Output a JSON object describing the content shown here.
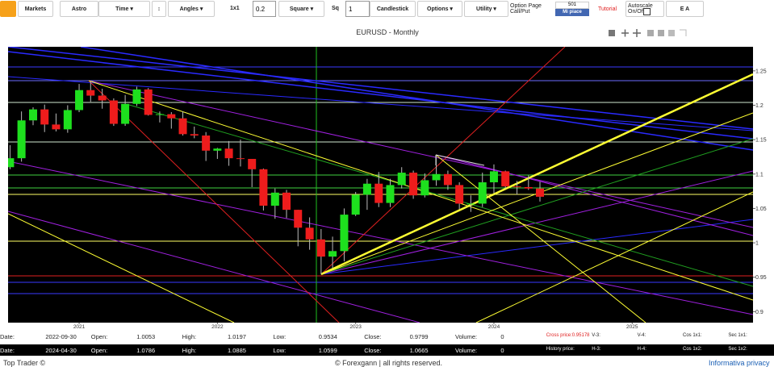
{
  "toolbar": {
    "markets": "Markets",
    "astro": "Astro",
    "time": "Time ▾",
    "updown": "↕",
    "angles": "Angles ▾",
    "ratio_label": "1x1",
    "ratio_value": "0.2",
    "square": "Square ▾",
    "sq_label": "Sq",
    "sq_value": "1",
    "candlestick": "Candlestick",
    "options": "Options ▾",
    "utility": "Utility ▾",
    "option_page": "Option Page",
    "call_put": "Call/Put",
    "like_count": "501",
    "like": "Mi piace",
    "tutorial": "Tutorial",
    "autoscale": "Autoscale",
    "on_off": "On/Off",
    "ea": "E A"
  },
  "chart_data": {
    "type": "candlestick",
    "title": "EURUSD - Monthly",
    "x": [
      2020.5,
      2020.583,
      2020.667,
      2020.75,
      2020.833,
      2020.917,
      2021.0,
      2021.083,
      2021.167,
      2021.25,
      2021.333,
      2021.417,
      2021.5,
      2021.583,
      2021.667,
      2021.75,
      2021.833,
      2021.917,
      2022.0,
      2022.083,
      2022.167,
      2022.25,
      2022.333,
      2022.417,
      2022.5,
      2022.583,
      2022.667,
      2022.75,
      2022.833,
      2022.917,
      2023.0,
      2023.083,
      2023.167,
      2023.25,
      2023.333,
      2023.417,
      2023.5,
      2023.583,
      2023.667,
      2023.75,
      2023.833,
      2023.917,
      2024.0,
      2024.083,
      2024.167,
      2024.25,
      2024.333
    ],
    "open": [
      1.11,
      1.123,
      1.178,
      1.194,
      1.172,
      1.165,
      1.193,
      1.222,
      1.214,
      1.207,
      1.173,
      1.202,
      1.223,
      1.186,
      1.187,
      1.181,
      1.158,
      1.156,
      1.134,
      1.137,
      1.123,
      1.122,
      1.107,
      1.054,
      1.073,
      1.048,
      1.022,
      1.005,
      0.98,
      0.988,
      1.041,
      1.07,
      1.086,
      1.058,
      1.084,
      1.102,
      1.069,
      1.091,
      1.1,
      1.084,
      1.057,
      1.057,
      1.088,
      1.104,
      1.082,
      1.081,
      1.079
    ],
    "high": [
      1.142,
      1.191,
      1.197,
      1.201,
      1.188,
      1.2,
      1.231,
      1.235,
      1.224,
      1.21,
      1.215,
      1.227,
      1.225,
      1.191,
      1.19,
      1.191,
      1.169,
      1.161,
      1.138,
      1.148,
      1.15,
      1.118,
      1.108,
      1.079,
      1.077,
      1.048,
      1.037,
      1.02,
      1.009,
      1.05,
      1.074,
      1.093,
      1.103,
      1.093,
      1.11,
      1.105,
      1.101,
      1.128,
      1.105,
      1.088,
      1.069,
      1.102,
      1.114,
      1.105,
      1.09,
      1.098,
      1.089
    ],
    "low": [
      1.107,
      1.118,
      1.171,
      1.161,
      1.162,
      1.16,
      1.19,
      1.205,
      1.195,
      1.17,
      1.17,
      1.199,
      1.185,
      1.175,
      1.166,
      1.156,
      1.152,
      1.119,
      1.122,
      1.112,
      1.111,
      1.081,
      1.047,
      1.035,
      1.036,
      0.995,
      0.99,
      0.954,
      0.963,
      0.973,
      1.039,
      1.048,
      1.052,
      1.052,
      1.079,
      1.064,
      1.066,
      1.083,
      1.077,
      1.049,
      1.045,
      1.052,
      1.072,
      1.079,
      1.07,
      1.077,
      1.06
    ],
    "close": [
      1.123,
      1.178,
      1.194,
      1.172,
      1.165,
      1.193,
      1.222,
      1.214,
      1.207,
      1.173,
      1.202,
      1.223,
      1.186,
      1.187,
      1.181,
      1.158,
      1.156,
      1.134,
      1.137,
      1.123,
      1.122,
      1.107,
      1.054,
      1.073,
      1.048,
      1.022,
      1.005,
      0.98,
      0.988,
      1.041,
      1.07,
      1.086,
      1.058,
      1.084,
      1.102,
      1.069,
      1.091,
      1.1,
      1.084,
      1.057,
      1.057,
      1.088,
      1.104,
      1.082,
      1.081,
      1.079,
      1.067
    ],
    "xlim": [
      2020.486,
      2025.874
    ],
    "xticks": [
      2021,
      2022,
      2023,
      2024,
      2025
    ],
    "ylim": [
      0.884,
      1.285
    ],
    "yticks": [
      0.9,
      0.95,
      1,
      1.05,
      1.1,
      1.15,
      1.2,
      1.25
    ],
    "up_color": "#1ee01e",
    "down_color": "#ee1c1c"
  },
  "info": {
    "row1": [
      "Date:",
      "2022-09-30",
      "Open:",
      "1.0053",
      "High:",
      "1.0197",
      "Low:",
      "0.9534",
      "Close:",
      "0.9799",
      "Volume:",
      "0",
      "Cross price:0.95178",
      "V-3:",
      "V-4:",
      "Cos 1x1:",
      "Sec 1x1:"
    ],
    "row2": [
      "Date:",
      "2024-04-30",
      "Open:",
      "1.0786",
      "High:",
      "1.0885",
      "Low:",
      "1.0599",
      "Close:",
      "1.0665",
      "Volume:",
      "0",
      "History price:",
      "H-3:",
      "H-4:",
      "Cos 1x2:",
      "Sec 1x2:"
    ]
  },
  "footer": {
    "left": "Top Trader ©",
    "center": "© Forexgann | all rights reserved.",
    "right": "Informativa privacy"
  }
}
